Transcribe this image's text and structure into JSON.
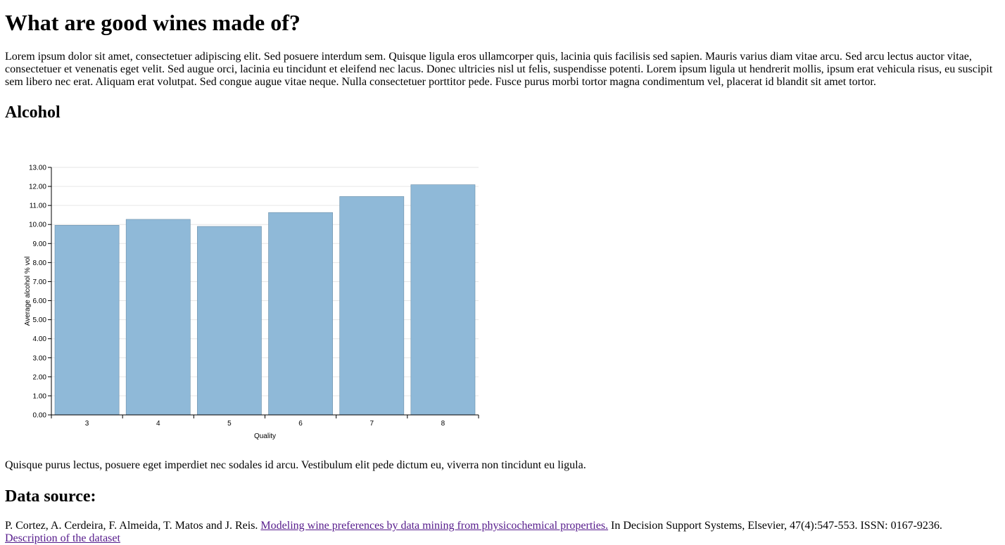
{
  "page": {
    "title": "What are good wines made of?",
    "intro": "Lorem ipsum dolor sit amet, consectetuer adipiscing elit. Sed posuere interdum sem. Quisque ligula eros ullamcorper quis, lacinia quis facilisis sed sapien. Mauris varius diam vitae arcu. Sed arcu lectus auctor vitae, consectetuer et venenatis eget velit. Sed augue orci, lacinia eu tincidunt et eleifend nec lacus. Donec ultricies nisl ut felis, suspendisse potenti. Lorem ipsum ligula ut hendrerit mollis, ipsum erat vehicula risus, eu suscipit sem libero nec erat. Aliquam erat volutpat. Sed congue augue vitae neque. Nulla consectetuer porttitor pede. Fusce purus morbi tortor magna condimentum vel, placerat id blandit sit amet tortor.",
    "section_heading": "Alcohol",
    "outro": "Quisque purus lectus, posuere eget imperdiet nec sodales id arcu. Vestibulum elit pede dictum eu, viverra non tincidunt eu ligula.",
    "source_heading": "Data source:",
    "citation_prefix": "P. Cortez, A. Cerdeira, F. Almeida, T. Matos and J. Reis. ",
    "citation_link": "Modeling wine preferences by data mining from physicochemical properties.",
    "citation_suffix": " In Decision Support Systems, Elsevier, 47(4):547-553. ISSN: 0167-9236.",
    "dataset_link": "Description of the dataset"
  },
  "colors": {
    "bar_fill": "#8fb9d8",
    "bar_stroke": "#6d8fa8",
    "gridline": "#e6e6e6",
    "axis": "#000000",
    "link": "#551a8b"
  },
  "chart_data": {
    "type": "bar",
    "categories": [
      "3",
      "4",
      "5",
      "6",
      "7",
      "8"
    ],
    "values": [
      9.96,
      10.27,
      9.9,
      10.63,
      11.47,
      12.09
    ],
    "xlabel": "Quality",
    "ylabel": "Average alcohol % vol",
    "ylim": [
      0,
      13
    ],
    "yticks": [
      "0.00",
      "1.00",
      "2.00",
      "3.00",
      "4.00",
      "5.00",
      "6.00",
      "7.00",
      "8.00",
      "9.00",
      "10.00",
      "11.00",
      "12.00",
      "13.00"
    ],
    "grid": true
  }
}
